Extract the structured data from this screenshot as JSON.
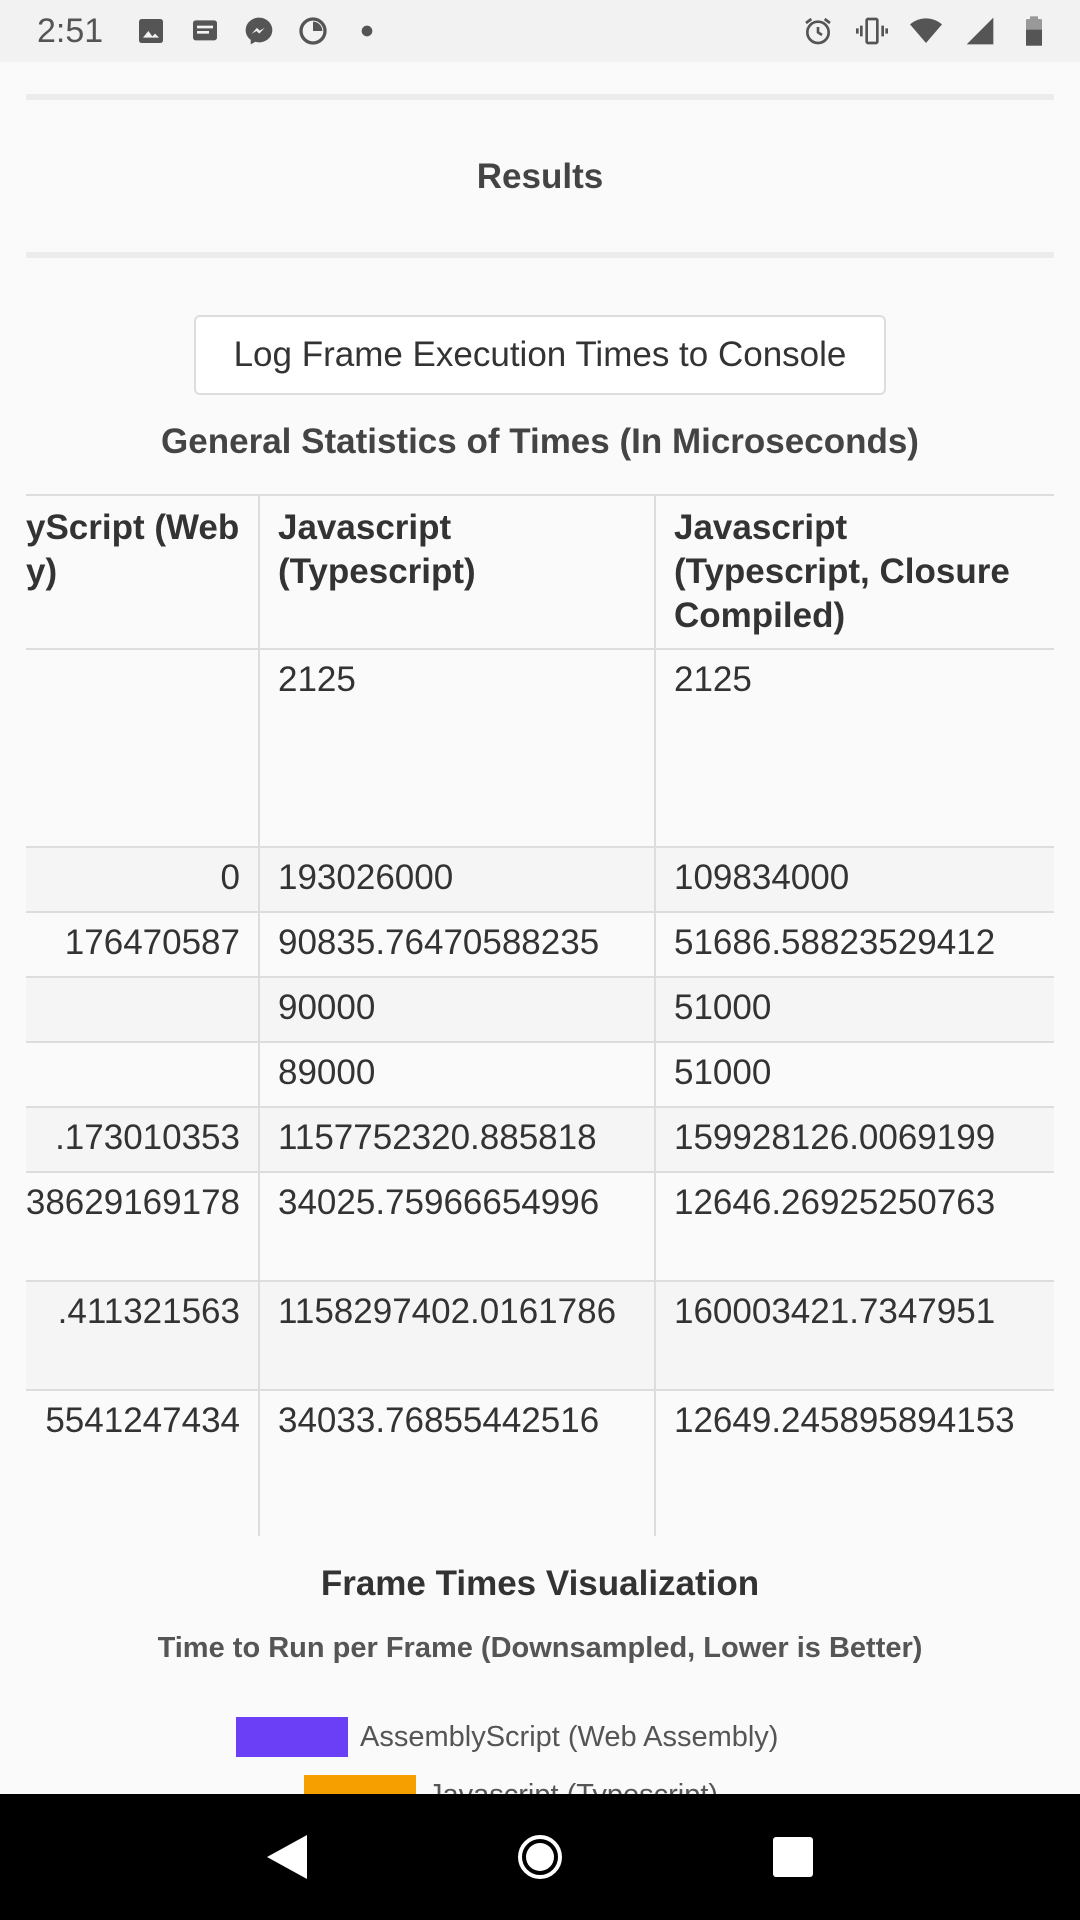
{
  "status_bar": {
    "time": "2:51",
    "left_icons": [
      "image-icon",
      "message-icon",
      "messenger-icon",
      "data-saver-icon",
      "dot-icon"
    ],
    "right_icons": [
      "alarm-icon",
      "vibrate-icon",
      "wifi-icon",
      "signal-icon",
      "battery-icon"
    ]
  },
  "results": {
    "heading": "Results"
  },
  "log_button": {
    "label": "Log Frame Execution Times to Console"
  },
  "stats": {
    "title": "General Statistics of Times (In Microseconds)",
    "headers": [
      "yScript (Web y)",
      "Javascript (Typescript)",
      "Javascript (Typescript, Closure Compiled)"
    ],
    "rows": [
      [
        "",
        "2125",
        "2125"
      ],
      [
        "0",
        "193026000",
        "109834000"
      ],
      [
        "176470587",
        "90835.76470588235",
        "51686.58823529412"
      ],
      [
        "",
        "90000",
        "51000"
      ],
      [
        "",
        "89000",
        "51000"
      ],
      [
        ".173010353",
        "1157752320.885818",
        "159928126.0069199"
      ],
      [
        "38629169178",
        "34025.75966654996",
        "12646.26925250763"
      ],
      [
        ".411321563",
        "1158297402.0161786",
        "160003421.7347951"
      ],
      [
        "5541247434",
        "34033.76855442516",
        "12649.245895894153"
      ]
    ]
  },
  "visualization": {
    "title": "Frame Times Visualization",
    "subtitle": "Time to Run per Frame (Downsampled, Lower is Better)",
    "legend": [
      {
        "label": "AssemblyScript (Web Assembly)",
        "color": "#6a3ff5"
      },
      {
        "label": "Javascript (Typescript)",
        "color": "#f5a000"
      }
    ]
  },
  "nav_bar": {
    "icons": [
      "back-icon",
      "home-icon",
      "recents-icon"
    ]
  }
}
